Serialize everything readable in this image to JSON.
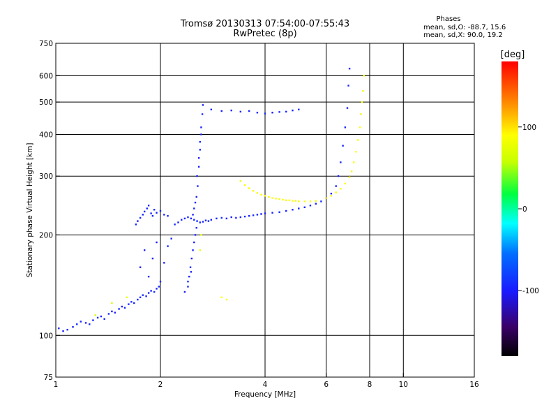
{
  "title_line1": "Tromsø 20130313 07:54:00-07:55:43",
  "title_line2": "RwPretec (8p)",
  "stats": {
    "heading": "Phases",
    "line1": "mean, sd,O: -88.7, 15.6",
    "line2": "mean, sd,X:  90.0, 19.2"
  },
  "colorbar": {
    "label": "[deg]",
    "min": -180,
    "max": 180,
    "ticks": [
      {
        "value": 100,
        "label": "100"
      },
      {
        "value": 0,
        "label": "0"
      },
      {
        "value": -100,
        "label": "-100"
      }
    ]
  },
  "chart_data": {
    "type": "scatter",
    "title": "Tromsø 20130313 07:54:00-07:55:43",
    "subtitle": "RwPretec (8p)",
    "xlabel": "Frequency [MHz]",
    "ylabel": "Stationary phase Virtual Height [km]",
    "xscale": "log",
    "yscale": "log",
    "xlim": [
      1,
      16
    ],
    "ylim": [
      75,
      750
    ],
    "grid": true,
    "x_ticks": [
      {
        "value": 1,
        "label": "1"
      },
      {
        "value": 2,
        "label": "2"
      },
      {
        "value": 4,
        "label": "4"
      },
      {
        "value": 6,
        "label": "6"
      },
      {
        "value": 8,
        "label": "8"
      },
      {
        "value": 10,
        "label": "10"
      },
      {
        "value": 16,
        "label": "16"
      }
    ],
    "y_ticks": [
      {
        "value": 75,
        "label": "75"
      },
      {
        "value": 100,
        "label": "100"
      },
      {
        "value": 200,
        "label": "200"
      },
      {
        "value": 300,
        "label": "300"
      },
      {
        "value": 400,
        "label": "400"
      },
      {
        "value": 500,
        "label": "500"
      },
      {
        "value": 600,
        "label": "600"
      },
      {
        "value": 750,
        "label": "750"
      }
    ],
    "x_gridlines": [
      2,
      4,
      6,
      8,
      10
    ],
    "y_gridlines": [
      100,
      200,
      300,
      400,
      500,
      600
    ],
    "series": [
      {
        "mode": "O",
        "points": [
          [
            1.02,
            105,
            -95
          ],
          [
            1.05,
            103,
            -100
          ],
          [
            1.08,
            104,
            -92
          ],
          [
            1.12,
            106,
            -98
          ],
          [
            1.15,
            108,
            -90
          ],
          [
            1.18,
            110,
            -95
          ],
          [
            1.22,
            109,
            -100
          ],
          [
            1.25,
            108,
            -94
          ],
          [
            1.28,
            111,
            -97
          ],
          [
            1.32,
            113,
            -92
          ],
          [
            1.35,
            114,
            -99
          ],
          [
            1.38,
            112,
            -95
          ],
          [
            1.42,
            116,
            -93
          ],
          [
            1.45,
            118,
            -100
          ],
          [
            1.48,
            117,
            -96
          ],
          [
            1.52,
            120,
            -91
          ],
          [
            1.55,
            122,
            -98
          ],
          [
            1.58,
            121,
            -94
          ],
          [
            1.62,
            124,
            -96
          ],
          [
            1.65,
            126,
            -90
          ],
          [
            1.68,
            125,
            -99
          ],
          [
            1.72,
            128,
            -93
          ],
          [
            1.75,
            130,
            -95
          ],
          [
            1.78,
            132,
            -92
          ],
          [
            1.82,
            131,
            -98
          ],
          [
            1.85,
            134,
            -94
          ],
          [
            1.88,
            136,
            -96
          ],
          [
            1.92,
            135,
            -91
          ],
          [
            1.95,
            138,
            -97
          ],
          [
            1.98,
            140,
            -93
          ],
          [
            1.7,
            215,
            -95
          ],
          [
            1.72,
            220,
            -98
          ],
          [
            1.75,
            225,
            -92
          ],
          [
            1.78,
            230,
            -96
          ],
          [
            1.8,
            235,
            -94
          ],
          [
            1.83,
            240,
            -97
          ],
          [
            1.85,
            245,
            -91
          ],
          [
            1.88,
            232,
            -99
          ],
          [
            1.9,
            228,
            -95
          ],
          [
            1.92,
            238,
            -93
          ],
          [
            1.95,
            233,
            -96
          ],
          [
            2.0,
            236,
            -92
          ],
          [
            2.05,
            230,
            -98
          ],
          [
            2.1,
            228,
            -94
          ],
          [
            1.75,
            160,
            -100
          ],
          [
            1.8,
            180,
            -96
          ],
          [
            1.85,
            150,
            -93
          ],
          [
            1.9,
            170,
            -98
          ],
          [
            1.95,
            190,
            -95
          ],
          [
            2.0,
            145,
            -92
          ],
          [
            2.05,
            165,
            -97
          ],
          [
            2.1,
            185,
            -94
          ],
          [
            2.15,
            195,
            -96
          ],
          [
            2.2,
            215,
            -94
          ],
          [
            2.25,
            218,
            -97
          ],
          [
            2.3,
            222,
            -92
          ],
          [
            2.35,
            224,
            -96
          ],
          [
            2.4,
            226,
            -93
          ],
          [
            2.45,
            224,
            -99
          ],
          [
            2.5,
            222,
            -95
          ],
          [
            2.55,
            220,
            -92
          ],
          [
            2.6,
            218,
            -96
          ],
          [
            2.65,
            219,
            -94
          ],
          [
            2.7,
            221,
            -98
          ],
          [
            2.75,
            220,
            -93
          ],
          [
            2.8,
            222,
            -95
          ],
          [
            2.9,
            224,
            -97
          ],
          [
            3.0,
            225,
            -92
          ],
          [
            3.1,
            224,
            -95
          ],
          [
            3.2,
            226,
            -98
          ],
          [
            3.3,
            225,
            -94
          ],
          [
            3.4,
            226,
            -96
          ],
          [
            3.5,
            227,
            -92
          ],
          [
            3.6,
            228,
            -97
          ],
          [
            3.7,
            229,
            -93
          ],
          [
            3.8,
            230,
            -95
          ],
          [
            3.9,
            231,
            -99
          ],
          [
            4.0,
            232,
            -94
          ],
          [
            4.2,
            233,
            -96
          ],
          [
            4.4,
            234,
            -92
          ],
          [
            4.6,
            236,
            -97
          ],
          [
            4.8,
            238,
            -93
          ],
          [
            5.0,
            240,
            -95
          ],
          [
            5.2,
            242,
            -98
          ],
          [
            5.4,
            245,
            -94
          ],
          [
            5.6,
            248,
            -96
          ],
          [
            5.8,
            252,
            -92
          ],
          [
            6.0,
            258,
            -97
          ],
          [
            6.2,
            266,
            -93
          ],
          [
            6.4,
            280,
            -95
          ],
          [
            6.5,
            300,
            -99
          ],
          [
            6.6,
            330,
            -94
          ],
          [
            6.7,
            370,
            -96
          ],
          [
            6.8,
            420,
            -92
          ],
          [
            6.9,
            480,
            -97
          ],
          [
            6.95,
            560,
            -93
          ],
          [
            7.0,
            630,
            -95
          ],
          [
            2.55,
            300,
            -94
          ],
          [
            2.58,
            340,
            -97
          ],
          [
            2.6,
            380,
            -92
          ],
          [
            2.62,
            420,
            -96
          ],
          [
            2.64,
            460,
            -93
          ],
          [
            2.65,
            490,
            -99
          ],
          [
            2.62,
            400,
            -95
          ],
          [
            2.6,
            360,
            -92
          ],
          [
            2.58,
            320,
            -96
          ],
          [
            2.56,
            280,
            -94
          ],
          [
            2.54,
            260,
            -98
          ],
          [
            2.52,
            250,
            -93
          ],
          [
            2.5,
            240,
            -95
          ],
          [
            2.48,
            230,
            -97
          ],
          [
            2.4,
            140,
            -94
          ],
          [
            2.42,
            150,
            -97
          ],
          [
            2.44,
            160,
            -92
          ],
          [
            2.46,
            170,
            -96
          ],
          [
            2.48,
            180,
            -93
          ],
          [
            2.5,
            190,
            -99
          ],
          [
            2.52,
            200,
            -95
          ],
          [
            2.54,
            210,
            -92
          ],
          [
            2.45,
            155,
            -96
          ],
          [
            2.4,
            145,
            -94
          ],
          [
            2.35,
            135,
            -98
          ],
          [
            2.8,
            475,
            -95
          ],
          [
            3.0,
            470,
            -98
          ],
          [
            3.2,
            472,
            -92
          ],
          [
            3.4,
            468,
            -96
          ],
          [
            3.6,
            470,
            -94
          ],
          [
            3.8,
            465,
            -97
          ],
          [
            4.0,
            462,
            -91
          ],
          [
            4.2,
            465,
            -99
          ],
          [
            4.4,
            467,
            -95
          ],
          [
            4.6,
            468,
            -93
          ],
          [
            4.8,
            472,
            -96
          ],
          [
            5.0,
            475,
            -92
          ]
        ]
      },
      {
        "mode": "X",
        "points": [
          [
            3.4,
            290,
            80
          ],
          [
            3.5,
            282,
            85
          ],
          [
            3.6,
            276,
            88
          ],
          [
            3.7,
            271,
            92
          ],
          [
            3.8,
            267,
            86
          ],
          [
            3.9,
            264,
            90
          ],
          [
            4.0,
            262,
            84
          ],
          [
            4.1,
            260,
            93
          ],
          [
            4.2,
            258,
            87
          ],
          [
            4.3,
            257,
            91
          ],
          [
            4.4,
            256,
            85
          ],
          [
            4.5,
            255,
            89
          ],
          [
            4.6,
            254,
            92
          ],
          [
            4.7,
            254,
            86
          ],
          [
            4.8,
            253,
            90
          ],
          [
            4.9,
            253,
            84
          ],
          [
            5.0,
            252,
            93
          ],
          [
            5.2,
            252,
            87
          ],
          [
            5.4,
            252,
            91
          ],
          [
            5.6,
            253,
            85
          ],
          [
            6.0,
            258,
            95
          ],
          [
            6.2,
            262,
            88
          ],
          [
            6.4,
            268,
            92
          ],
          [
            6.6,
            275,
            86
          ],
          [
            6.8,
            285,
            90
          ],
          [
            7.0,
            298,
            84
          ],
          [
            7.1,
            310,
            93
          ],
          [
            7.2,
            330,
            87
          ],
          [
            7.3,
            355,
            91
          ],
          [
            7.4,
            385,
            85
          ],
          [
            7.5,
            420,
            89
          ],
          [
            7.55,
            460,
            95
          ],
          [
            7.6,
            500,
            88
          ],
          [
            7.65,
            540,
            92
          ],
          [
            7.7,
            600,
            86
          ],
          [
            2.6,
            180,
            75
          ],
          [
            2.62,
            200,
            80
          ],
          [
            3.0,
            130,
            90
          ],
          [
            3.1,
            128,
            85
          ],
          [
            1.3,
            115,
            70
          ],
          [
            1.45,
            125,
            65
          ],
          [
            1.6,
            130,
            75
          ]
        ]
      }
    ]
  }
}
